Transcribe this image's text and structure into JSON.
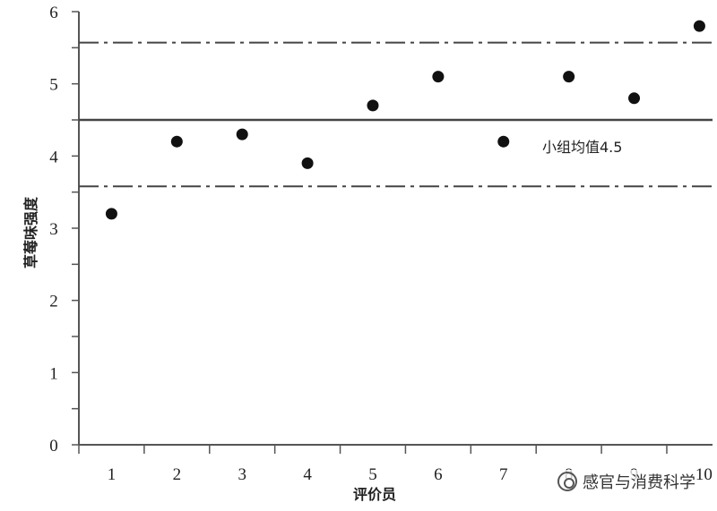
{
  "chart_data": {
    "type": "scatter",
    "title": "",
    "xlabel": "评价员",
    "ylabel": "草莓味强度",
    "xlim": [
      0.5,
      10.2
    ],
    "ylim": [
      0,
      6
    ],
    "x_ticks": [
      "1",
      "2",
      "3",
      "4",
      "5",
      "6",
      "7",
      "8",
      "9",
      "10"
    ],
    "y_ticks": [
      "0",
      "1",
      "2",
      "3",
      "4",
      "5",
      "6"
    ],
    "series": [
      {
        "x": [
          1,
          2,
          3,
          4,
          5,
          6,
          7,
          8,
          9,
          10
        ],
        "y": [
          3.2,
          4.2,
          4.3,
          3.9,
          4.7,
          5.1,
          4.2,
          5.1,
          4.8,
          5.8
        ]
      }
    ],
    "reference_lines": [
      {
        "y": 4.5,
        "style": "solid",
        "label": "小组均值4.5"
      },
      {
        "y": 5.57,
        "style": "dash-dot"
      },
      {
        "y": 3.58,
        "style": "dash-dot"
      }
    ],
    "grid": false,
    "legend": "none"
  },
  "watermark": {
    "text": "感官与消费科学",
    "icon": "wechat-icon"
  }
}
